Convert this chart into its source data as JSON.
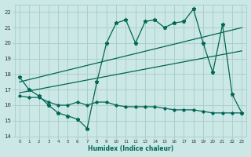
{
  "xlabel": "Humidex (Indice chaleur)",
  "xlim": [
    -0.5,
    23.5
  ],
  "ylim": [
    14,
    22.5
  ],
  "yticks": [
    14,
    15,
    16,
    17,
    18,
    19,
    20,
    21,
    22
  ],
  "xticks": [
    0,
    1,
    2,
    3,
    4,
    5,
    6,
    7,
    8,
    9,
    10,
    11,
    12,
    13,
    14,
    15,
    16,
    17,
    18,
    19,
    20,
    21,
    22,
    23
  ],
  "bg_color": "#cce8e6",
  "grid_color": "#aacfcd",
  "line_color": "#006655",
  "line1_x": [
    0,
    1,
    2,
    3,
    4,
    5,
    6,
    7,
    8,
    9,
    10,
    11,
    12,
    13,
    14,
    15,
    16,
    17,
    18,
    19,
    20,
    21,
    22,
    23
  ],
  "line1_y": [
    17.8,
    17.0,
    16.6,
    16.0,
    15.5,
    15.3,
    15.1,
    14.5,
    17.5,
    20.0,
    21.3,
    21.5,
    20.0,
    21.4,
    21.5,
    21.0,
    21.3,
    21.4,
    22.2,
    20.0,
    18.1,
    21.2,
    16.7,
    15.5
  ],
  "line2_x": [
    0,
    1,
    2,
    3,
    4,
    5,
    6,
    7,
    8,
    9,
    10,
    11,
    12,
    13,
    14,
    15,
    16,
    17,
    18,
    19,
    20,
    21,
    22,
    23
  ],
  "line2_y": [
    16.6,
    16.5,
    16.5,
    16.2,
    16.0,
    16.0,
    16.2,
    16.0,
    16.2,
    16.2,
    16.0,
    15.9,
    15.9,
    15.9,
    15.9,
    15.8,
    15.7,
    15.7,
    15.7,
    15.6,
    15.5,
    15.5,
    15.5,
    15.5
  ],
  "trend1_x": [
    0,
    23
  ],
  "trend1_y": [
    17.5,
    21.0
  ],
  "trend2_x": [
    0,
    23
  ],
  "trend2_y": [
    16.8,
    19.5
  ]
}
